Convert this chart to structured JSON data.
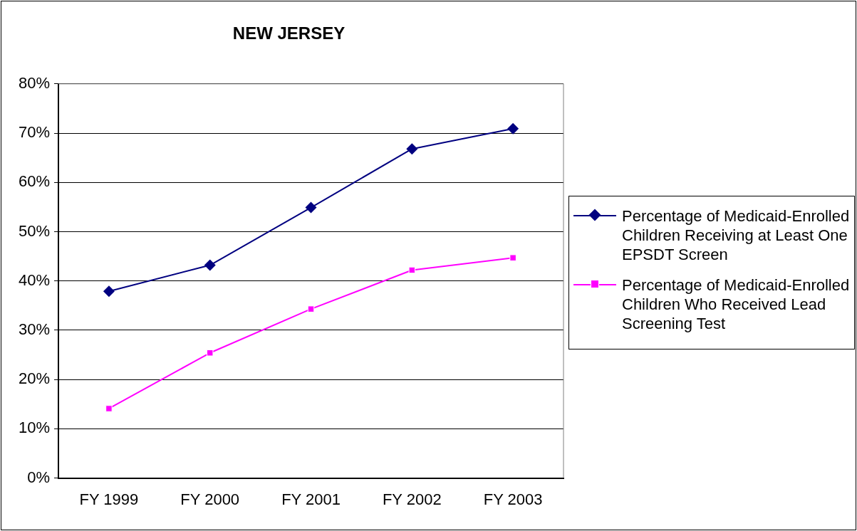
{
  "chart_data": {
    "type": "line",
    "title": "NEW JERSEY",
    "categories": [
      "FY 1999",
      "FY 2000",
      "FY 2001",
      "FY 2002",
      "FY 2003"
    ],
    "series": [
      {
        "name": "Percentage of Medicaid-Enrolled Children Receiving at Least One EPSDT Screen",
        "color": "#000080",
        "marker": "diamond",
        "values": [
          37.9,
          43.2,
          54.9,
          66.8,
          70.9
        ]
      },
      {
        "name": "Percentage of Medicaid-Enrolled Children Who Received Lead Screening Test",
        "color": "#ff00ff",
        "marker": "square",
        "values": [
          14.1,
          25.4,
          34.3,
          42.2,
          44.7
        ]
      }
    ],
    "ylim": [
      0,
      80
    ],
    "yticks": [
      {
        "value": 0,
        "label": "0%"
      },
      {
        "value": 10,
        "label": "10%"
      },
      {
        "value": 20,
        "label": "20%"
      },
      {
        "value": 30,
        "label": "30%"
      },
      {
        "value": 40,
        "label": "40%"
      },
      {
        "value": 50,
        "label": "50%"
      },
      {
        "value": 60,
        "label": "60%"
      },
      {
        "value": 70,
        "label": "70%"
      },
      {
        "value": 80,
        "label": "80%"
      }
    ],
    "grid": "y",
    "legend": "right",
    "line_style": "solid"
  }
}
